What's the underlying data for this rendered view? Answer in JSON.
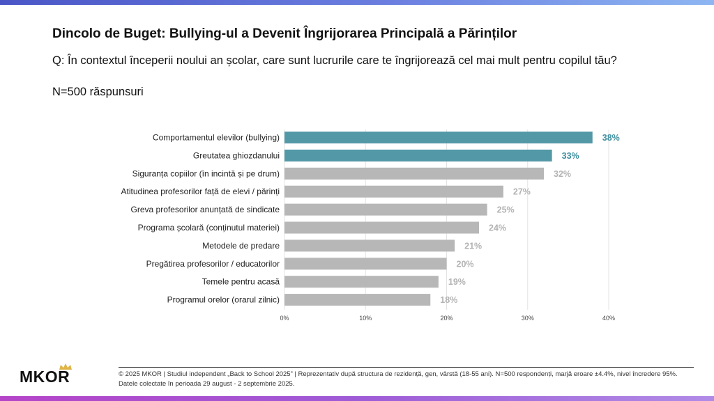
{
  "title": "Dincolo de Buget: Bullying-ul a Devenit Îngrijorarea Principală a Părinților",
  "question": "Q: În contextul începerii noului an școlar, care sunt lucrurile care te îngrijorează cel mai mult pentru copilul tău?",
  "sample": "N=500 răspunsuri",
  "logo": {
    "text": "MKOR",
    "icon": "crown-icon"
  },
  "footer": "© 2025 MKOR | Studiul independent „Back to School 2025” | Reprezentativ după structura de rezidență, gen, vârstă (18-55 ani). N=500 respondenți, marjă eroare ±4.4%, nivel încredere 95%. Datele colectate în perioada 29 august - 2 septembrie 2025.",
  "colors": {
    "highlight": "#5398a6",
    "default": "#b7b7b7",
    "highlight_label": "#3f8f9f",
    "default_label": "#b3b3b3",
    "grid": "#e3e3e3"
  },
  "chart_data": {
    "type": "bar",
    "orientation": "horizontal",
    "categories": [
      "Comportamentul elevilor (bullying)",
      "Greutatea ghiozdanului",
      "Siguranța copiilor (în incintă și pe drum)",
      "Atitudinea profesorilor față de elevi / părinți",
      "Greva profesorilor anunțată de sindicate",
      "Programa școlară (conținutul materiei)",
      "Metodele de predare",
      "Pregătirea profesorilor / educatorilor",
      "Temele pentru acasă",
      "Programul orelor (orarul zilnic)"
    ],
    "values": [
      38,
      33,
      32,
      27,
      25,
      24,
      21,
      20,
      19,
      18
    ],
    "value_labels": [
      "38%",
      "33%",
      "32%",
      "27%",
      "25%",
      "24%",
      "21%",
      "20%",
      "19%",
      "18%"
    ],
    "highlighted": [
      true,
      true,
      false,
      false,
      false,
      false,
      false,
      false,
      false,
      false
    ],
    "xlim": [
      0,
      40
    ],
    "xticks": [
      0,
      10,
      20,
      30,
      40
    ],
    "xtick_labels": [
      "0%",
      "10%",
      "20%",
      "30%",
      "40%"
    ],
    "grid": true,
    "legend": "none"
  }
}
